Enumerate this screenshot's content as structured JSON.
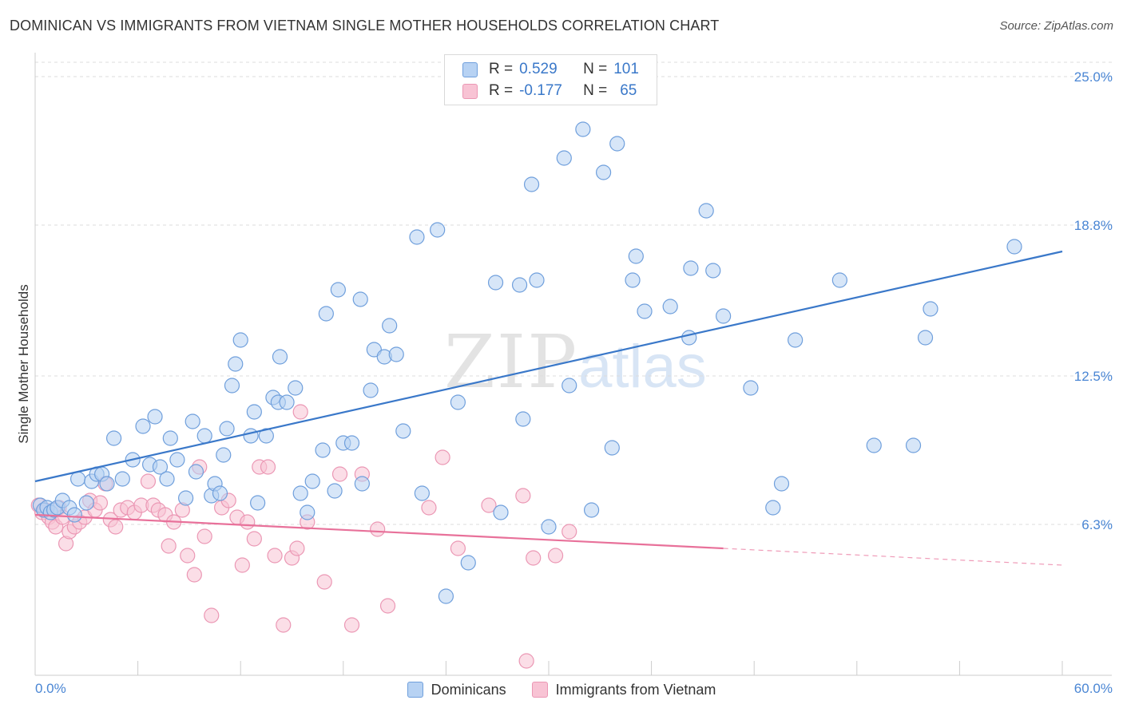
{
  "title": "DOMINICAN VS IMMIGRANTS FROM VIETNAM SINGLE MOTHER HOUSEHOLDS CORRELATION CHART",
  "source": "Source: ZipAtlas.com",
  "watermark": {
    "zip": "ZIP",
    "atlas": "atlas"
  },
  "legend": {
    "dominicans": {
      "r_label": "R =",
      "r": "0.529",
      "n_label": "N =",
      "n": "101"
    },
    "vietnam": {
      "r_label": "R =",
      "r": "-0.177",
      "n_label": "N =",
      "n": "65"
    }
  },
  "colors": {
    "blue": "#3a78c9",
    "blue_fill": "#b7d2f3",
    "blue_stroke": "#6f9fdc",
    "pink": "#e8719a",
    "pink_fill": "#f8c3d4",
    "pink_stroke": "#eb97b4",
    "grid": "#dcdcdc"
  },
  "chart_data": {
    "type": "scatter",
    "title": "DOMINICAN VS IMMIGRANTS FROM VIETNAM SINGLE MOTHER HOUSEHOLDS CORRELATION CHART",
    "xlabel": "",
    "ylabel": "Single Mother Households",
    "xlim": [
      0,
      60
    ],
    "ylim": [
      0,
      25.6
    ],
    "x_tick_labels": [
      "0.0%",
      "60.0%"
    ],
    "y_ticks": [
      6.3,
      12.5,
      18.8,
      25.0
    ],
    "y_tick_labels": [
      "6.3%",
      "12.5%",
      "18.8%",
      "25.0%"
    ],
    "grid": "horizontal dashed",
    "legend_position": "top-center and bottom",
    "series": [
      {
        "name": "Dominicans",
        "color": "#3a78c9",
        "trend": {
          "x": [
            0,
            60
          ],
          "y": [
            8.1,
            17.7
          ]
        },
        "points": [
          [
            0.3,
            7.1
          ],
          [
            0.5,
            6.9
          ],
          [
            0.7,
            7.0
          ],
          [
            0.9,
            6.8
          ],
          [
            1.1,
            6.9
          ],
          [
            1.3,
            7.0
          ],
          [
            1.6,
            7.3
          ],
          [
            2.0,
            7.0
          ],
          [
            2.3,
            6.7
          ],
          [
            2.5,
            8.2
          ],
          [
            3.0,
            7.2
          ],
          [
            3.3,
            8.1
          ],
          [
            3.6,
            8.4
          ],
          [
            3.9,
            8.4
          ],
          [
            4.2,
            8.0
          ],
          [
            4.6,
            9.9
          ],
          [
            5.1,
            8.2
          ],
          [
            5.7,
            9.0
          ],
          [
            6.3,
            10.4
          ],
          [
            6.7,
            8.8
          ],
          [
            7.0,
            10.8
          ],
          [
            7.3,
            8.7
          ],
          [
            7.7,
            8.2
          ],
          [
            7.9,
            9.9
          ],
          [
            8.3,
            9.0
          ],
          [
            8.8,
            7.4
          ],
          [
            9.2,
            10.6
          ],
          [
            9.4,
            8.5
          ],
          [
            9.9,
            10.0
          ],
          [
            10.3,
            7.5
          ],
          [
            10.5,
            8.0
          ],
          [
            10.8,
            7.6
          ],
          [
            11.0,
            9.2
          ],
          [
            11.2,
            10.3
          ],
          [
            11.5,
            12.1
          ],
          [
            11.7,
            13.0
          ],
          [
            12.0,
            14.0
          ],
          [
            12.6,
            10.0
          ],
          [
            12.8,
            11.0
          ],
          [
            13.0,
            7.2
          ],
          [
            13.5,
            10.0
          ],
          [
            13.9,
            11.6
          ],
          [
            14.2,
            11.4
          ],
          [
            14.3,
            13.3
          ],
          [
            14.7,
            11.4
          ],
          [
            15.2,
            12.0
          ],
          [
            15.5,
            7.6
          ],
          [
            15.9,
            6.8
          ],
          [
            16.2,
            8.1
          ],
          [
            16.8,
            9.4
          ],
          [
            17.0,
            15.1
          ],
          [
            17.5,
            7.7
          ],
          [
            17.7,
            16.1
          ],
          [
            18.0,
            9.7
          ],
          [
            18.5,
            9.7
          ],
          [
            19.0,
            15.7
          ],
          [
            19.1,
            8.0
          ],
          [
            19.6,
            11.9
          ],
          [
            19.8,
            13.6
          ],
          [
            20.4,
            13.3
          ],
          [
            20.7,
            14.6
          ],
          [
            21.1,
            13.4
          ],
          [
            21.5,
            10.2
          ],
          [
            22.3,
            18.3
          ],
          [
            22.6,
            7.6
          ],
          [
            23.5,
            18.6
          ],
          [
            24.0,
            3.3
          ],
          [
            24.7,
            11.4
          ],
          [
            25.3,
            4.7
          ],
          [
            26.9,
            16.4
          ],
          [
            27.2,
            6.8
          ],
          [
            28.3,
            16.3
          ],
          [
            28.5,
            10.7
          ],
          [
            29.0,
            20.5
          ],
          [
            29.3,
            16.5
          ],
          [
            30.0,
            6.2
          ],
          [
            30.9,
            21.6
          ],
          [
            31.2,
            12.1
          ],
          [
            32.0,
            22.8
          ],
          [
            32.5,
            6.9
          ],
          [
            33.2,
            21.0
          ],
          [
            33.7,
            9.5
          ],
          [
            34.0,
            22.2
          ],
          [
            34.9,
            16.5
          ],
          [
            35.1,
            17.5
          ],
          [
            35.6,
            15.2
          ],
          [
            37.1,
            15.4
          ],
          [
            38.2,
            14.1
          ],
          [
            38.3,
            17.0
          ],
          [
            39.2,
            19.4
          ],
          [
            39.6,
            16.9
          ],
          [
            40.2,
            15.0
          ],
          [
            41.8,
            12.0
          ],
          [
            43.1,
            7.0
          ],
          [
            43.6,
            8.0
          ],
          [
            44.4,
            14.0
          ],
          [
            47.0,
            16.5
          ],
          [
            49.0,
            9.6
          ],
          [
            51.3,
            9.6
          ],
          [
            52.0,
            14.1
          ],
          [
            52.3,
            15.3
          ],
          [
            57.2,
            17.9
          ]
        ]
      },
      {
        "name": "Immigrants from Vietnam",
        "color": "#e8719a",
        "trend": {
          "x": [
            0,
            40.2
          ],
          "y": [
            6.7,
            5.3
          ]
        },
        "trend_dashed": {
          "x": [
            40.2,
            60
          ],
          "y": [
            5.3,
            4.6
          ]
        },
        "points": [
          [
            0.2,
            7.1
          ],
          [
            0.4,
            6.8
          ],
          [
            0.6,
            6.9
          ],
          [
            0.8,
            6.6
          ],
          [
            1.0,
            6.4
          ],
          [
            1.2,
            6.2
          ],
          [
            1.4,
            7.0
          ],
          [
            1.6,
            6.6
          ],
          [
            1.8,
            5.5
          ],
          [
            2.0,
            6.0
          ],
          [
            2.3,
            6.2
          ],
          [
            2.6,
            6.4
          ],
          [
            2.9,
            6.6
          ],
          [
            3.2,
            7.3
          ],
          [
            3.5,
            6.9
          ],
          [
            3.8,
            7.2
          ],
          [
            4.1,
            8.0
          ],
          [
            4.4,
            6.5
          ],
          [
            4.7,
            6.2
          ],
          [
            5.0,
            6.9
          ],
          [
            5.4,
            7.0
          ],
          [
            5.8,
            6.8
          ],
          [
            6.2,
            7.1
          ],
          [
            6.6,
            8.1
          ],
          [
            6.9,
            7.1
          ],
          [
            7.2,
            6.9
          ],
          [
            7.6,
            6.7
          ],
          [
            7.8,
            5.4
          ],
          [
            8.1,
            6.4
          ],
          [
            8.6,
            6.9
          ],
          [
            8.9,
            5.0
          ],
          [
            9.3,
            4.2
          ],
          [
            9.6,
            8.7
          ],
          [
            9.9,
            5.8
          ],
          [
            10.3,
            2.5
          ],
          [
            10.9,
            7.0
          ],
          [
            11.3,
            7.3
          ],
          [
            11.8,
            6.6
          ],
          [
            12.1,
            4.6
          ],
          [
            12.4,
            6.4
          ],
          [
            12.8,
            5.7
          ],
          [
            13.1,
            8.7
          ],
          [
            13.6,
            8.7
          ],
          [
            14.0,
            5.0
          ],
          [
            14.5,
            2.1
          ],
          [
            15.0,
            4.9
          ],
          [
            15.3,
            5.3
          ],
          [
            15.5,
            11.0
          ],
          [
            15.9,
            6.4
          ],
          [
            16.9,
            3.9
          ],
          [
            17.8,
            8.4
          ],
          [
            18.5,
            2.1
          ],
          [
            19.1,
            8.4
          ],
          [
            20.0,
            6.1
          ],
          [
            20.6,
            2.9
          ],
          [
            23.0,
            7.0
          ],
          [
            23.8,
            9.1
          ],
          [
            24.7,
            5.3
          ],
          [
            26.5,
            7.1
          ],
          [
            28.5,
            7.5
          ],
          [
            28.7,
            0.6
          ],
          [
            29.1,
            4.9
          ],
          [
            30.4,
            5.0
          ],
          [
            31.2,
            6.0
          ]
        ]
      }
    ]
  }
}
